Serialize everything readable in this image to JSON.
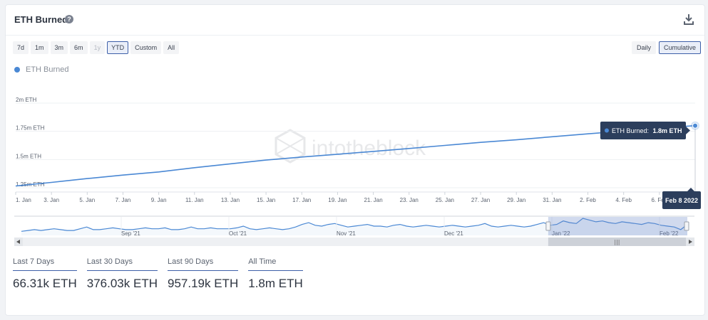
{
  "header": {
    "title": "ETH Burned",
    "help_glyph": "?"
  },
  "range_buttons": [
    {
      "label": "7d",
      "state": "normal"
    },
    {
      "label": "1m",
      "state": "normal"
    },
    {
      "label": "3m",
      "state": "normal"
    },
    {
      "label": "6m",
      "state": "normal"
    },
    {
      "label": "1y",
      "state": "disabled"
    },
    {
      "label": "YTD",
      "state": "active"
    },
    {
      "label": "Custom",
      "state": "normal"
    },
    {
      "label": "All",
      "state": "normal"
    }
  ],
  "mode_buttons": [
    {
      "label": "Daily",
      "active": false
    },
    {
      "label": "Cumulative",
      "active": true
    }
  ],
  "legend": {
    "label": "ETH Burned",
    "color": "#4a88d4"
  },
  "watermark": "intotheblock",
  "tooltip": {
    "label": "ETH Burned:",
    "value": "1.8m ETH",
    "date": "Feb 8 2022"
  },
  "chart_data": {
    "type": "line",
    "series": [
      {
        "name": "ETH Burned",
        "color": "#4a88d4",
        "x": [
          "Jan 1",
          "Jan 3",
          "Jan 5",
          "Jan 7",
          "Jan 9",
          "Jan 11",
          "Jan 13",
          "Jan 15",
          "Jan 17",
          "Jan 19",
          "Jan 21",
          "Jan 23",
          "Jan 25",
          "Jan 27",
          "Jan 29",
          "Jan 31",
          "Feb 2",
          "Feb 4",
          "Feb 6",
          "Feb 8"
        ],
        "y": [
          1.265,
          1.297,
          1.331,
          1.362,
          1.39,
          1.428,
          1.462,
          1.495,
          1.522,
          1.547,
          1.572,
          1.598,
          1.625,
          1.652,
          1.675,
          1.702,
          1.728,
          1.752,
          1.778,
          1.8
        ]
      }
    ],
    "x_tick_labels": [
      "1. Jan",
      "3. Jan",
      "5. Jan",
      "7. Jan",
      "9. Jan",
      "11. Jan",
      "13. Jan",
      "15. Jan",
      "17. Jan",
      "19. Jan",
      "21. Jan",
      "23. Jan",
      "25. Jan",
      "27. Jan",
      "29. Jan",
      "31. Jan",
      "2. Feb",
      "4. Feb",
      "6. Feb"
    ],
    "y_ticks": [
      1.25,
      1.5,
      1.75,
      2.0
    ],
    "y_tick_labels": [
      "1.25m ETH",
      "1.5m ETH",
      "1.75m ETH",
      "2m ETH"
    ],
    "ylim": [
      1.25,
      2.0
    ],
    "grid": true,
    "navigator": {
      "labels": [
        "Sep '21",
        "Oct '21",
        "Nov '21",
        "Dec '21",
        "Jan '22",
        "Feb '22"
      ],
      "values": [
        3,
        4,
        5,
        4,
        5,
        6,
        5,
        4,
        4,
        6,
        8,
        5,
        5,
        6,
        7,
        6,
        5,
        5,
        6,
        7,
        6,
        6,
        7,
        5,
        5,
        6,
        8,
        6,
        6,
        7,
        6,
        6,
        6,
        7,
        9,
        6,
        5,
        6,
        7,
        6,
        5,
        6,
        8,
        11,
        13,
        10,
        9,
        11,
        12,
        10,
        8,
        9,
        10,
        11,
        9,
        9,
        8,
        10,
        11,
        9,
        8,
        9,
        10,
        9,
        8,
        9,
        10,
        9,
        8,
        9,
        10,
        12,
        9,
        8,
        9,
        10,
        9,
        8,
        9,
        11,
        13,
        10,
        11,
        15,
        13,
        12,
        18,
        16,
        14,
        15,
        13,
        12,
        14,
        13,
        12,
        11,
        13,
        12,
        10,
        9,
        8,
        5,
        11
      ],
      "selection_start_fraction": 0.785
    }
  },
  "stats": [
    {
      "label": "Last 7 Days",
      "value": "66.31k ETH"
    },
    {
      "label": "Last 30 Days",
      "value": "376.03k ETH"
    },
    {
      "label": "Last 90 Days",
      "value": "957.19k ETH"
    },
    {
      "label": "All Time",
      "value": "1.8m ETH"
    }
  ]
}
